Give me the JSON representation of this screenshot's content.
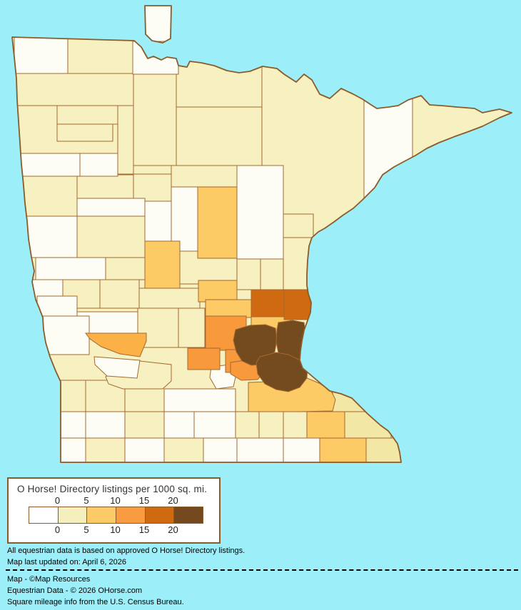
{
  "legend": {
    "title": "O Horse! Directory listings per 1000 sq. mi.",
    "ticks_top": [
      "0",
      "5",
      "10",
      "15",
      "20"
    ],
    "ticks_bottom": [
      "0",
      "5",
      "10",
      "15",
      "20"
    ],
    "swatch_colors": [
      "#ffffff",
      "#f5efbe",
      "#fcca66",
      "#f99c41",
      "#cf6a10",
      "#74491f"
    ]
  },
  "notes": [
    "All equestrian data is based on approved O Horse! Directory listings.",
    "Map last updated on: April 6, 2026"
  ],
  "credits": [
    "Map - ©Map Resources",
    "Equestrian Data - © 2026 OHorse.com",
    "Square mileage info from the U.S. Census Bureau."
  ],
  "map": {
    "water_color": "#9ceef8",
    "land_default_color": "#f7f0c1",
    "county_border_color": "#a4692f",
    "state_border_color": "#8b5b29",
    "palette": {
      "W": "#fdfdf6",
      "PY": "#f7f0c1",
      "PY2": "#f2e7a4",
      "A": "#fccb66",
      "AO": "#fbb145",
      "O": "#f8993c",
      "DO": "#cf6a12",
      "BR": "#744a1f"
    },
    "regions": [
      {
        "id": "roseau",
        "bucket": "PY"
      },
      {
        "id": "marshall",
        "bucket": "PY"
      },
      {
        "id": "polk",
        "bucket": "PY"
      },
      {
        "id": "pennington",
        "bucket": "PY"
      },
      {
        "id": "red-lake",
        "bucket": "PY"
      },
      {
        "id": "clearwater",
        "bucket": "PY"
      },
      {
        "id": "beltrami",
        "bucket": "PY"
      },
      {
        "id": "koochiching",
        "bucket": "PY"
      },
      {
        "id": "itasca",
        "bucket": "PY"
      },
      {
        "id": "st-louis",
        "bucket": "PY"
      },
      {
        "id": "cook",
        "bucket": "PY"
      },
      {
        "id": "becker",
        "bucket": "PY"
      },
      {
        "id": "hubbard",
        "bucket": "PY"
      },
      {
        "id": "cass-north",
        "bucket": "PY"
      },
      {
        "id": "carlton",
        "bucket": "PY"
      },
      {
        "id": "pine",
        "bucket": "PY"
      },
      {
        "id": "otter-tail",
        "bucket": "PY"
      },
      {
        "id": "clay",
        "bucket": "PY"
      },
      {
        "id": "douglas",
        "bucket": "PY"
      },
      {
        "id": "stevens",
        "bucket": "PY"
      },
      {
        "id": "pope",
        "bucket": "PY"
      },
      {
        "id": "morrison",
        "bucket": "PY"
      },
      {
        "id": "mille-lacs",
        "bucket": "PY"
      },
      {
        "id": "kanabec",
        "bucket": "PY"
      },
      {
        "id": "stearns",
        "bucket": "PY"
      },
      {
        "id": "kandiyohi",
        "bucket": "PY"
      },
      {
        "id": "meeker",
        "bucket": "PY"
      },
      {
        "id": "lincoln",
        "bucket": "PY"
      },
      {
        "id": "lyon",
        "bucket": "PY"
      },
      {
        "id": "redwood",
        "bucket": "PY"
      },
      {
        "id": "cottonwood",
        "bucket": "PY"
      },
      {
        "id": "nobles",
        "bucket": "PY"
      },
      {
        "id": "martin",
        "bucket": "PY"
      },
      {
        "id": "waseca",
        "bucket": "PY"
      },
      {
        "id": "steele",
        "bucket": "PY"
      },
      {
        "id": "dodge",
        "bucket": "PY"
      },
      {
        "id": "kittson",
        "bucket": "W"
      },
      {
        "id": "nw-angle",
        "bucket": "W"
      },
      {
        "id": "lake-of-the-woods",
        "bucket": "W"
      },
      {
        "id": "norman",
        "bucket": "W"
      },
      {
        "id": "mahnomen",
        "bucket": "W"
      },
      {
        "id": "becker-south",
        "bucket": "W"
      },
      {
        "id": "wadena",
        "bucket": "W"
      },
      {
        "id": "wilkin",
        "bucket": "W"
      },
      {
        "id": "grant",
        "bucket": "W"
      },
      {
        "id": "traverse",
        "bucket": "W"
      },
      {
        "id": "big-stone",
        "bucket": "W"
      },
      {
        "id": "swift",
        "bucket": "W"
      },
      {
        "id": "lac-qui-parle",
        "bucket": "W"
      },
      {
        "id": "aitkin",
        "bucket": "W"
      },
      {
        "id": "cass-south",
        "bucket": "W"
      },
      {
        "id": "lake",
        "bucket": "W"
      },
      {
        "id": "renville-sw",
        "bucket": "W"
      },
      {
        "id": "sibley",
        "bucket": "W"
      },
      {
        "id": "nicollet",
        "bucket": "W"
      },
      {
        "id": "pipestone",
        "bucket": "W"
      },
      {
        "id": "murray",
        "bucket": "W"
      },
      {
        "id": "watonwan",
        "bucket": "W"
      },
      {
        "id": "blue-earth",
        "bucket": "W"
      },
      {
        "id": "rock",
        "bucket": "W"
      },
      {
        "id": "jackson",
        "bucket": "W"
      },
      {
        "id": "faribault",
        "bucket": "W"
      },
      {
        "id": "freeborn",
        "bucket": "W"
      },
      {
        "id": "mower",
        "bucket": "W"
      },
      {
        "id": "wabasha",
        "bucket": "PY2"
      },
      {
        "id": "winona",
        "bucket": "PY2"
      },
      {
        "id": "houston",
        "bucket": "PY2"
      },
      {
        "id": "crow-wing",
        "bucket": "A"
      },
      {
        "id": "todd",
        "bucket": "A"
      },
      {
        "id": "benton",
        "bucket": "A"
      },
      {
        "id": "sherburne",
        "bucket": "A"
      },
      {
        "id": "anoka",
        "bucket": "A"
      },
      {
        "id": "le-sueur-goodhue",
        "bucket": "A"
      },
      {
        "id": "olmsted",
        "bucket": "A"
      },
      {
        "id": "fillmore",
        "bucket": "A"
      },
      {
        "id": "yellow-medicine",
        "bucket": "AO"
      },
      {
        "id": "wright",
        "bucket": "O"
      },
      {
        "id": "carver",
        "bucket": "O"
      },
      {
        "id": "mcleod",
        "bucket": "O"
      },
      {
        "id": "scott",
        "bucket": "O"
      },
      {
        "id": "isanti",
        "bucket": "DO"
      },
      {
        "id": "chisago",
        "bucket": "DO"
      },
      {
        "id": "hennepin",
        "bucket": "BR"
      },
      {
        "id": "ramsey-washington",
        "bucket": "BR"
      },
      {
        "id": "dakota",
        "bucket": "BR"
      }
    ]
  }
}
